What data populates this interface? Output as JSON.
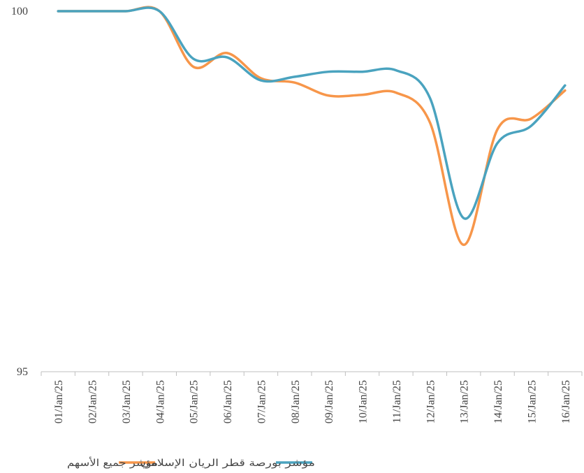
{
  "chart_data": {
    "type": "line",
    "categories": [
      "01/Jan/25",
      "02/Jan/25",
      "03/Jan/25",
      "04/Jan/25",
      "05/Jan/25",
      "06/Jan/25",
      "07/Jan/25",
      "08/Jan/25",
      "09/Jan/25",
      "10/Jan/25",
      "11/Jan/25",
      "12/Jan/25",
      "13/Jan/25",
      "14/Jan/25",
      "15/Jan/25",
      "16/Jan/25"
    ],
    "series": [
      {
        "name": "مؤشر جميع الأسهم",
        "color": "#f7964a",
        "values": [
          100,
          100,
          100,
          100,
          99.23,
          99.42,
          99.07,
          99.01,
          98.83,
          98.84,
          98.87,
          98.46,
          96.76,
          98.36,
          98.51,
          98.9
        ]
      },
      {
        "name": "مؤشر بورصة قطر الريان الإسلامي",
        "color": "#4aa3bf",
        "values": [
          100,
          100,
          100,
          100,
          99.34,
          99.36,
          99.04,
          99.09,
          99.16,
          99.16,
          99.18,
          98.8,
          97.13,
          98.17,
          98.41,
          98.97
        ]
      }
    ],
    "ylim": [
      95,
      100
    ],
    "yticks": [
      95,
      100
    ],
    "grid": false
  }
}
